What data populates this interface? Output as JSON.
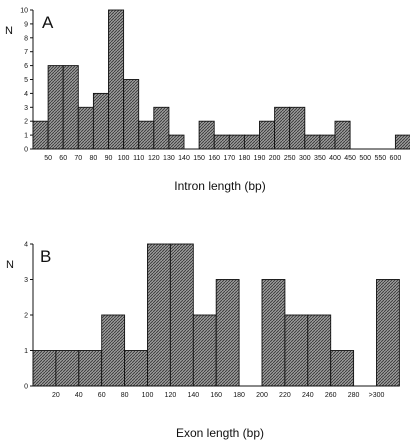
{
  "colors": {
    "bar_fill": "#8a8a8a",
    "bar_stroke": "#111111",
    "axis": "#111111",
    "background": "#ffffff"
  },
  "chart_data": [
    {
      "type": "bar",
      "panel_label": "A",
      "ylabel": "N",
      "xlabel": "Intron length (bp)",
      "ylim": [
        0,
        10
      ],
      "yticks": [
        0,
        1,
        2,
        3,
        4,
        5,
        6,
        7,
        8,
        9,
        10
      ],
      "categories": [
        "50",
        "60",
        "70",
        "80",
        "90",
        "100",
        "110",
        "120",
        "130",
        "140",
        "150",
        "160",
        "170",
        "180",
        "190",
        "200",
        "250",
        "300",
        "350",
        "400",
        "450",
        "500",
        "550",
        "600"
      ],
      "bars": [
        {
          "edge": 0,
          "value": 2
        },
        {
          "edge": 1,
          "value": 6
        },
        {
          "edge": 2,
          "value": 6
        },
        {
          "edge": 3,
          "value": 3
        },
        {
          "edge": 4,
          "value": 4
        },
        {
          "edge": 5,
          "value": 10
        },
        {
          "edge": 6,
          "value": 5
        },
        {
          "edge": 7,
          "value": 2
        },
        {
          "edge": 8,
          "value": 3
        },
        {
          "edge": 9,
          "value": 1
        },
        {
          "edge": 11,
          "value": 2
        },
        {
          "edge": 12,
          "value": 1
        },
        {
          "edge": 13,
          "value": 1
        },
        {
          "edge": 14,
          "value": 1
        },
        {
          "edge": 15,
          "value": 2
        },
        {
          "edge": 16,
          "value": 3
        },
        {
          "edge": 17,
          "value": 3
        },
        {
          "edge": 18,
          "value": 1
        },
        {
          "edge": 19,
          "value": 1
        },
        {
          "edge": 20,
          "value": 2
        },
        {
          "edge": 24,
          "value": 1
        }
      ],
      "grid": false
    },
    {
      "type": "bar",
      "panel_label": "B",
      "ylabel": "N",
      "xlabel": "Exon length (bp)",
      "ylim": [
        0,
        4
      ],
      "yticks": [
        0,
        1,
        2,
        3,
        4
      ],
      "categories": [
        "20",
        "40",
        "60",
        "80",
        "100",
        "120",
        "140",
        "160",
        "180",
        "200",
        "220",
        "240",
        "260",
        "280",
        ">300"
      ],
      "bars": [
        {
          "edge": 0,
          "value": 1
        },
        {
          "edge": 1,
          "value": 1
        },
        {
          "edge": 2,
          "value": 1
        },
        {
          "edge": 3,
          "value": 2
        },
        {
          "edge": 4,
          "value": 1
        },
        {
          "edge": 5,
          "value": 4
        },
        {
          "edge": 6,
          "value": 4
        },
        {
          "edge": 7,
          "value": 2
        },
        {
          "edge": 8,
          "value": 3
        },
        {
          "edge": 10,
          "value": 3
        },
        {
          "edge": 11,
          "value": 2
        },
        {
          "edge": 12,
          "value": 2
        },
        {
          "edge": 13,
          "value": 1
        },
        {
          "edge": 15,
          "value": 3
        }
      ],
      "grid": false
    }
  ]
}
